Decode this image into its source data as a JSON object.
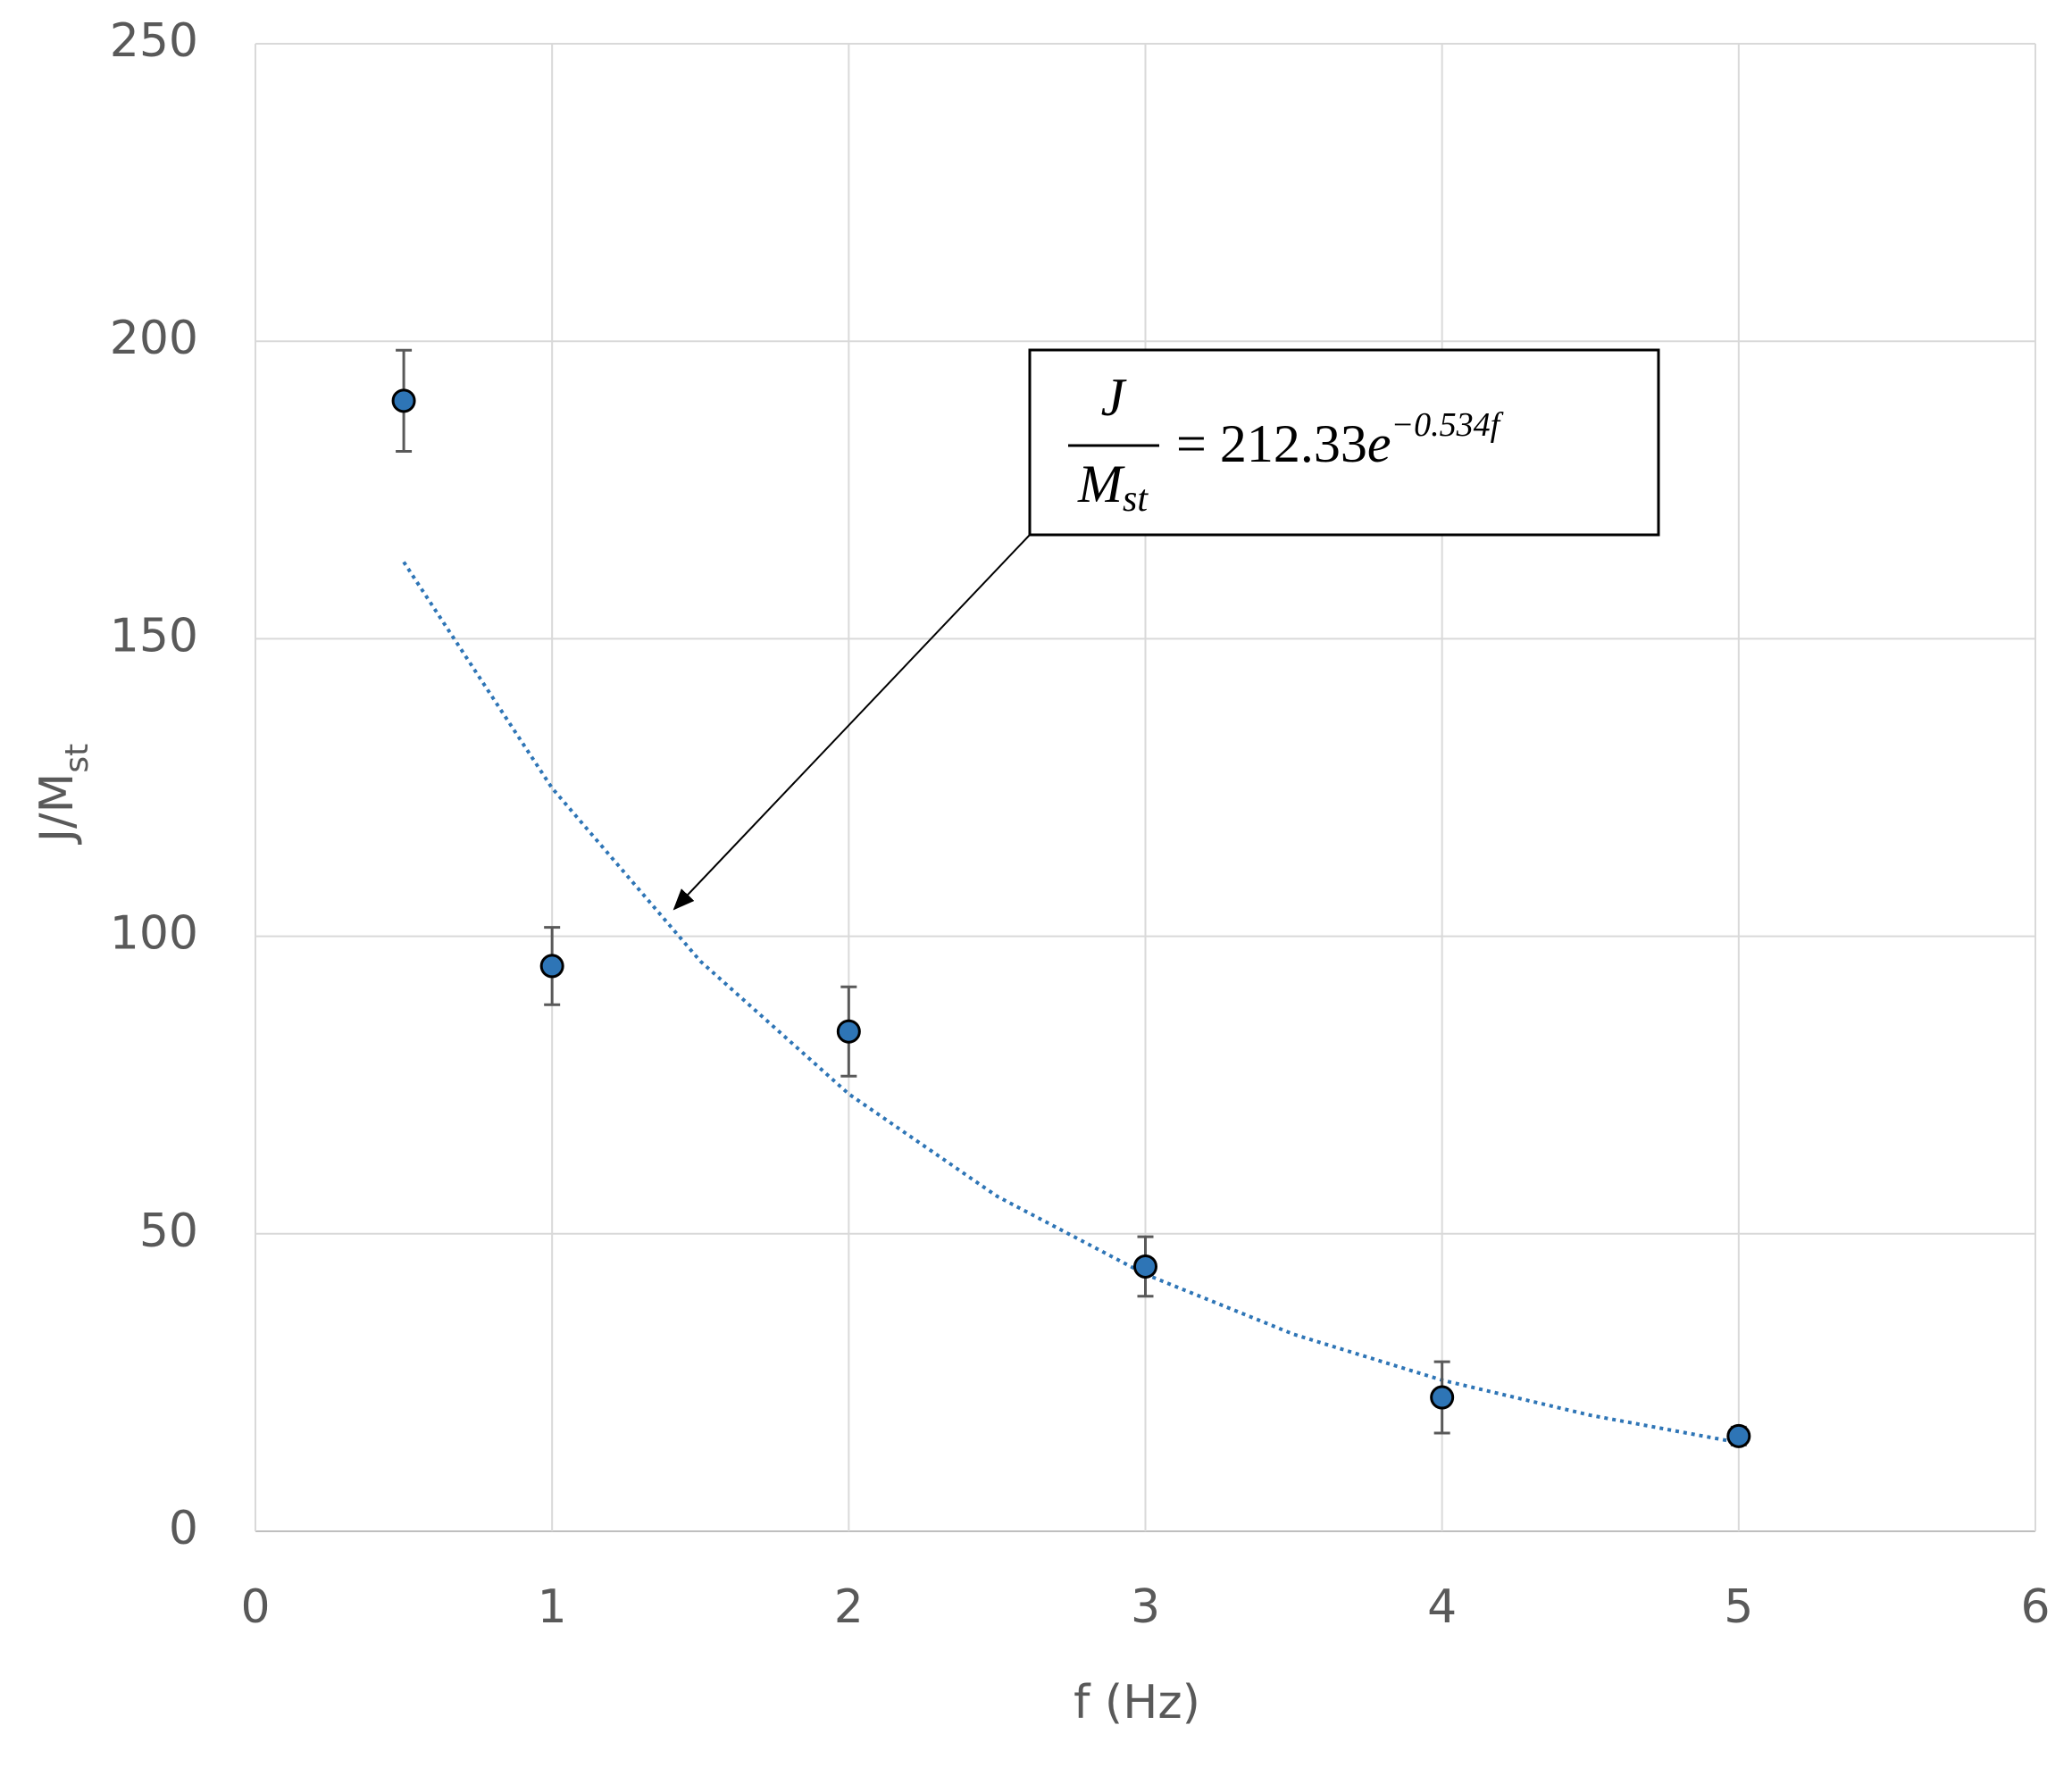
{
  "chart_data": {
    "type": "scatter",
    "x_label": "f (Hz)",
    "y_label": "J/M",
    "y_label_sub": "st",
    "x": [
      0.5,
      1,
      2,
      3,
      4,
      5
    ],
    "series": [
      {
        "color": "#2e75b6",
        "values": [
          190,
          95,
          84,
          44.5,
          22.5,
          16
        ],
        "errors": [
          8.5,
          6.5,
          7.5,
          5,
          6,
          1.5
        ]
      }
    ],
    "trendline": {
      "x": [
        0.5,
        1,
        1.5,
        2,
        2.5,
        3,
        3.5,
        4,
        4.5,
        5
      ],
      "values": [
        162.9,
        124.9,
        95.8,
        73.5,
        56.3,
        43.2,
        33.1,
        25.4,
        19.5,
        14.9
      ],
      "color": "#2e75b6",
      "style": "dotted"
    },
    "annotation": {
      "numerator": "J",
      "denominator": "M",
      "denominator_sub": "st",
      "equals": "= 212.33",
      "base": "e",
      "exponent": "−0.534f"
    },
    "xlim": [
      0,
      6
    ],
    "xticks": [
      0,
      1,
      2,
      3,
      4,
      5,
      6
    ],
    "ylim": [
      0,
      250
    ],
    "yticks": [
      0,
      50,
      100,
      150,
      200,
      250
    ],
    "grid": true
  }
}
